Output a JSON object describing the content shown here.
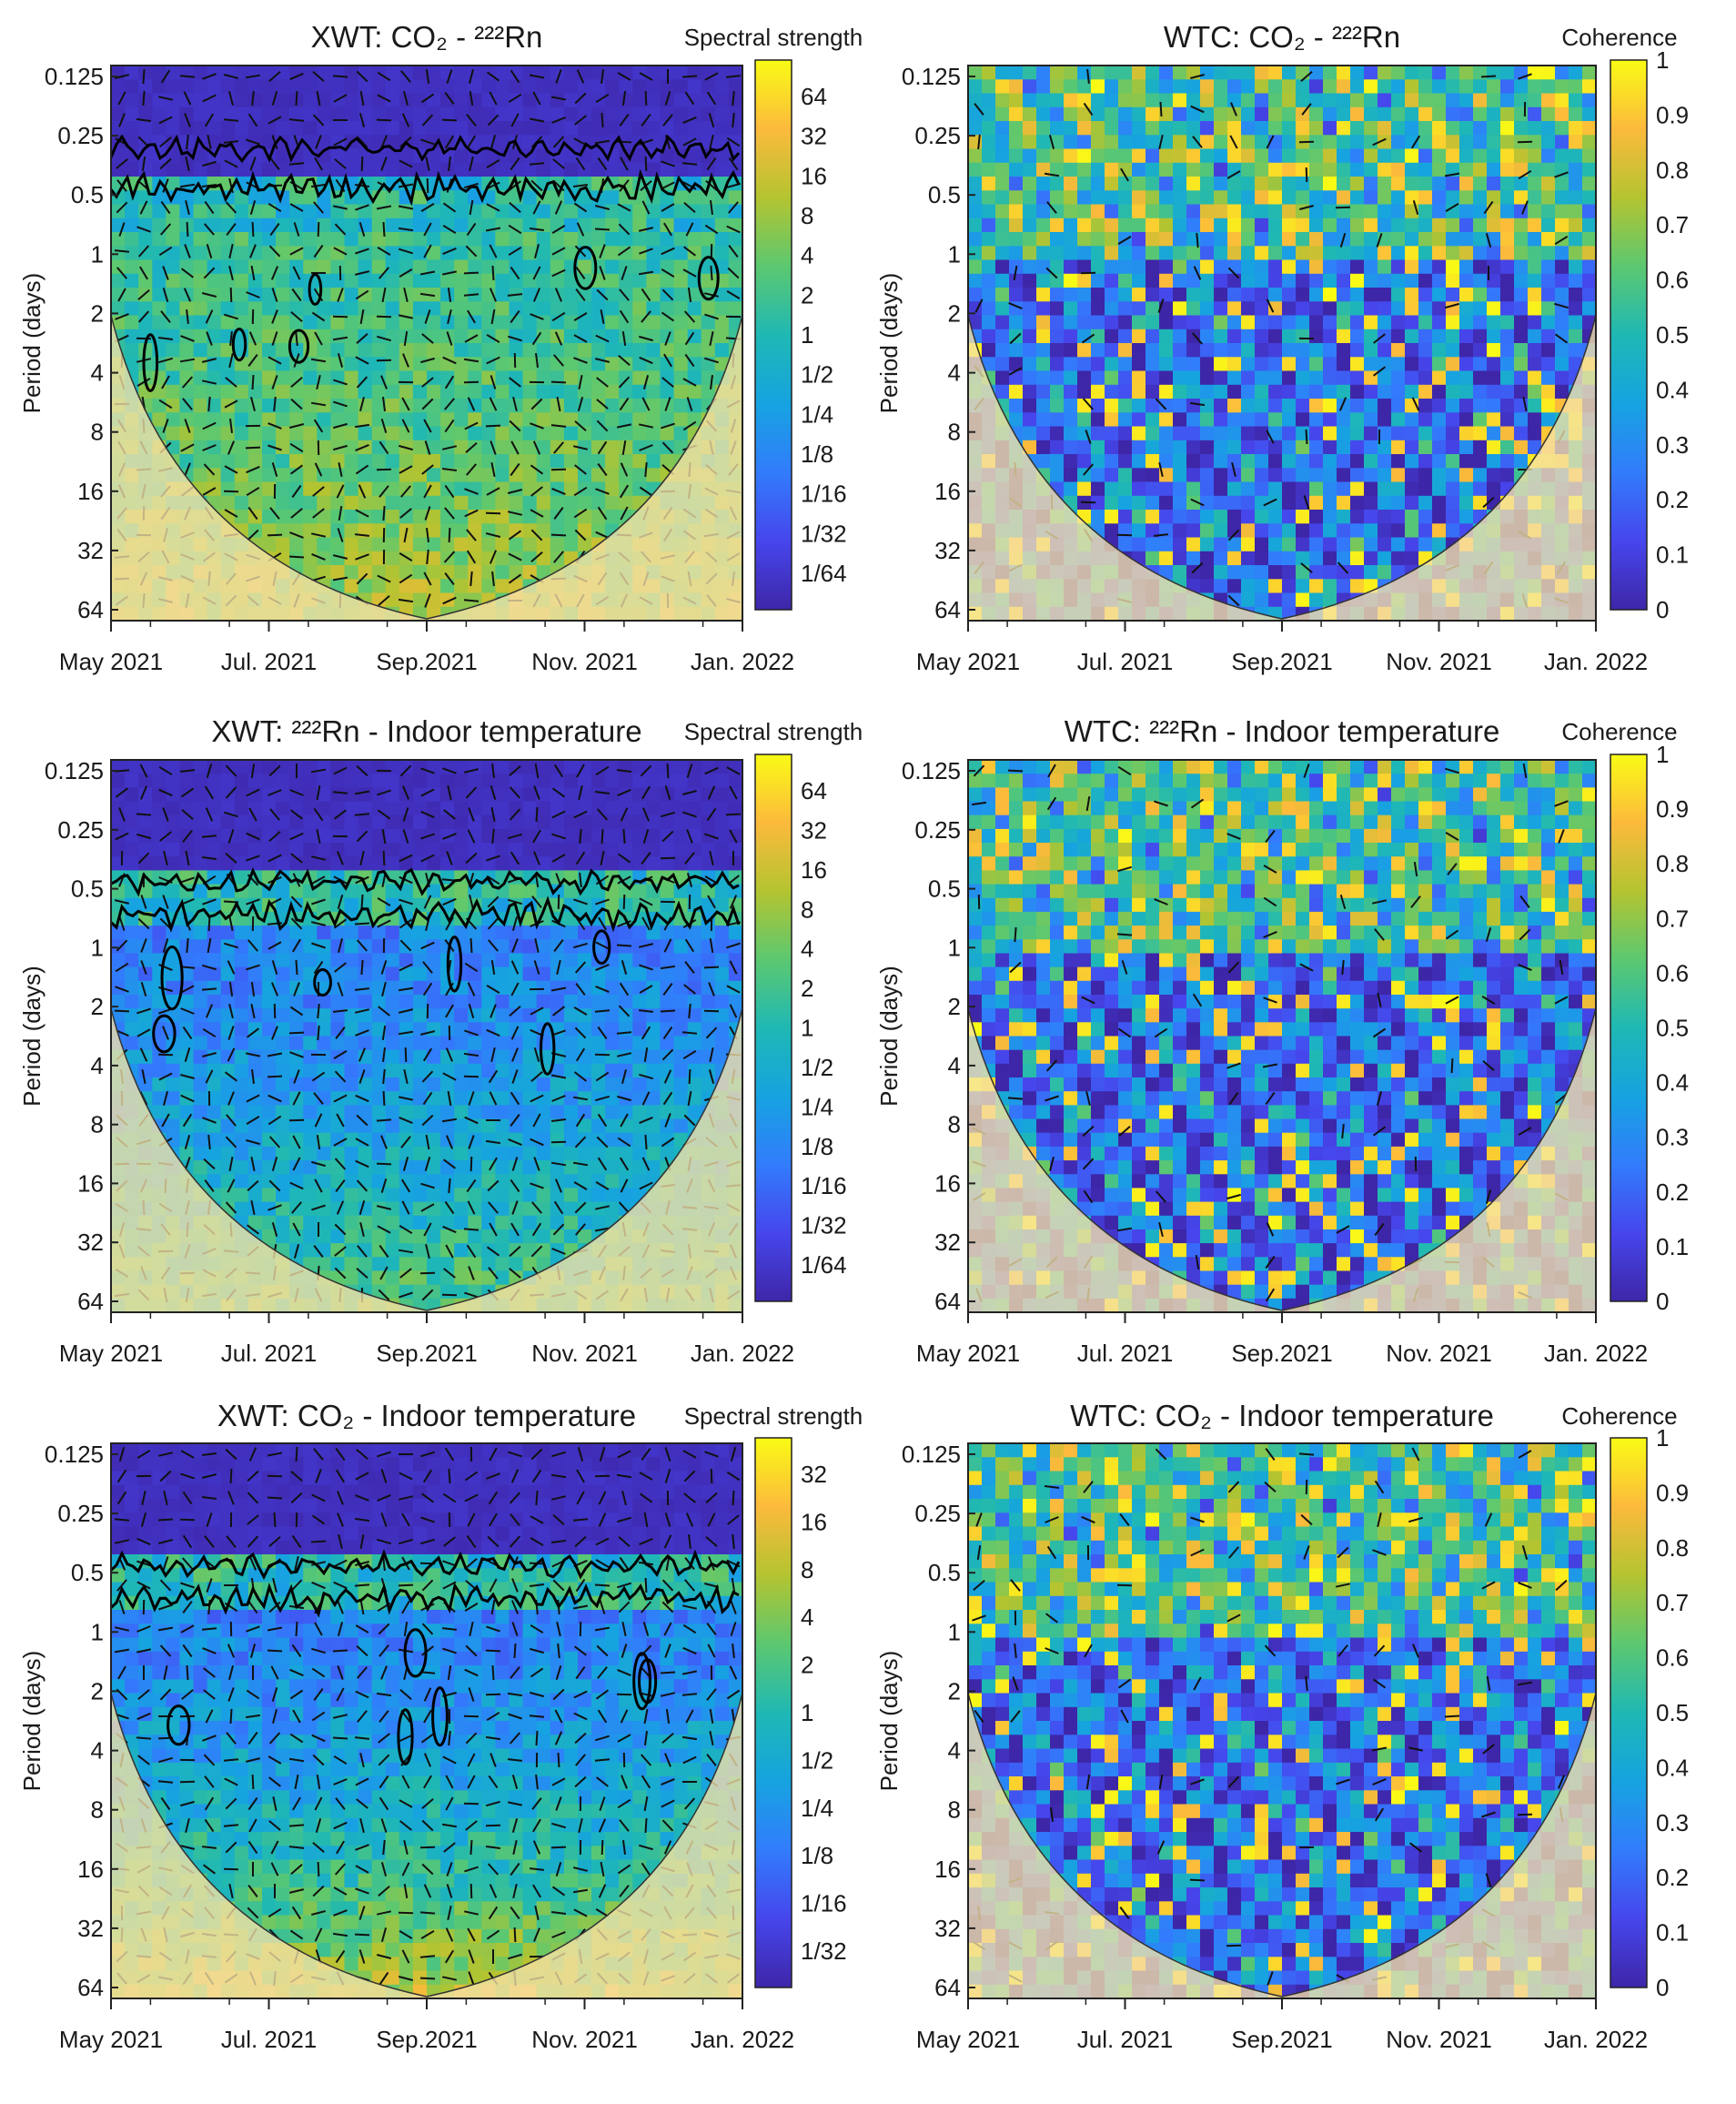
{
  "chart_data": [
    {
      "type": "heatmap",
      "panel": "xwt",
      "title": "XWT: CO₂ - ²²²Rn",
      "ylabel": "Period (days)",
      "colorbar_title": "Spectral strength",
      "colorbar_ticks": [
        "64",
        "32",
        "16",
        "8",
        "4",
        "2",
        "1",
        "1/2",
        "1/4",
        "1/8",
        "1/16",
        "1/32",
        "1/64"
      ],
      "xticks": [
        "May 2021",
        "Jul. 2021",
        "Sep.2021",
        "Nov. 2021",
        "Jan. 2022"
      ],
      "yticks": [
        "0.125",
        "0.25",
        "0.5",
        "1",
        "2",
        "4",
        "8",
        "16",
        "32",
        "64"
      ]
    },
    {
      "type": "heatmap",
      "panel": "wtc",
      "title": "WTC: CO₂ - ²²²Rn",
      "ylabel": "Period (days)",
      "colorbar_title": "Coherence",
      "colorbar_ticks": [
        "1",
        "0.9",
        "0.8",
        "0.7",
        "0.6",
        "0.5",
        "0.4",
        "0.3",
        "0.2",
        "0.1",
        "0"
      ],
      "xticks": [
        "May 2021",
        "Jul. 2021",
        "Sep.2021",
        "Nov. 2021",
        "Jan. 2022"
      ],
      "yticks": [
        "0.125",
        "0.25",
        "0.5",
        "1",
        "2",
        "4",
        "8",
        "16",
        "32",
        "64"
      ]
    },
    {
      "type": "heatmap",
      "panel": "xwt",
      "title": "XWT: ²²²Rn - Indoor temperature",
      "ylabel": "Period (days)",
      "colorbar_title": "Spectral strength",
      "colorbar_ticks": [
        "64",
        "32",
        "16",
        "8",
        "4",
        "2",
        "1",
        "1/2",
        "1/4",
        "1/8",
        "1/16",
        "1/32",
        "1/64"
      ],
      "xticks": [
        "May 2021",
        "Jul. 2021",
        "Sep.2021",
        "Nov. 2021",
        "Jan. 2022"
      ],
      "yticks": [
        "0.125",
        "0.25",
        "0.5",
        "1",
        "2",
        "4",
        "8",
        "16",
        "32",
        "64"
      ]
    },
    {
      "type": "heatmap",
      "panel": "wtc",
      "title": "WTC: ²²²Rn - Indoor temperature",
      "ylabel": "Period (days)",
      "colorbar_title": "Coherence",
      "colorbar_ticks": [
        "1",
        "0.9",
        "0.8",
        "0.7",
        "0.6",
        "0.5",
        "0.4",
        "0.3",
        "0.2",
        "0.1",
        "0"
      ],
      "xticks": [
        "May 2021",
        "Jul. 2021",
        "Sep.2021",
        "Nov. 2021",
        "Jan. 2022"
      ],
      "yticks": [
        "0.125",
        "0.25",
        "0.5",
        "1",
        "2",
        "4",
        "8",
        "16",
        "32",
        "64"
      ]
    },
    {
      "type": "heatmap",
      "panel": "xwt",
      "title": "XWT: CO₂ - Indoor temperature",
      "ylabel": "Period (days)",
      "colorbar_title": "Spectral strength",
      "colorbar_ticks": [
        "32",
        "16",
        "8",
        "4",
        "2",
        "1",
        "1/2",
        "1/4",
        "1/8",
        "1/16",
        "1/32"
      ],
      "xticks": [
        "May 2021",
        "Jul. 2021",
        "Sep.2021",
        "Nov. 2021",
        "Jan. 2022"
      ],
      "yticks": [
        "0.125",
        "0.25",
        "0.5",
        "1",
        "2",
        "4",
        "8",
        "16",
        "32",
        "64"
      ]
    },
    {
      "type": "heatmap",
      "panel": "wtc",
      "title": "WTC: CO₂ - Indoor temperature",
      "ylabel": "Period (days)",
      "colorbar_title": "Coherence",
      "colorbar_ticks": [
        "1",
        "0.9",
        "0.8",
        "0.7",
        "0.6",
        "0.5",
        "0.4",
        "0.3",
        "0.2",
        "0.1",
        "0"
      ],
      "xticks": [
        "May 2021",
        "Jul. 2021",
        "Sep.2021",
        "Nov. 2021",
        "Jan. 2022"
      ],
      "yticks": [
        "0.125",
        "0.25",
        "0.5",
        "1",
        "2",
        "4",
        "8",
        "16",
        "32",
        "64"
      ]
    }
  ],
  "colors": {
    "parula_low": "#3e26a8",
    "parula_mid": "#1fb8b4",
    "parula_high": "#f9fb15",
    "cone_wash": "#f5e1a8",
    "contour": "#000000"
  }
}
